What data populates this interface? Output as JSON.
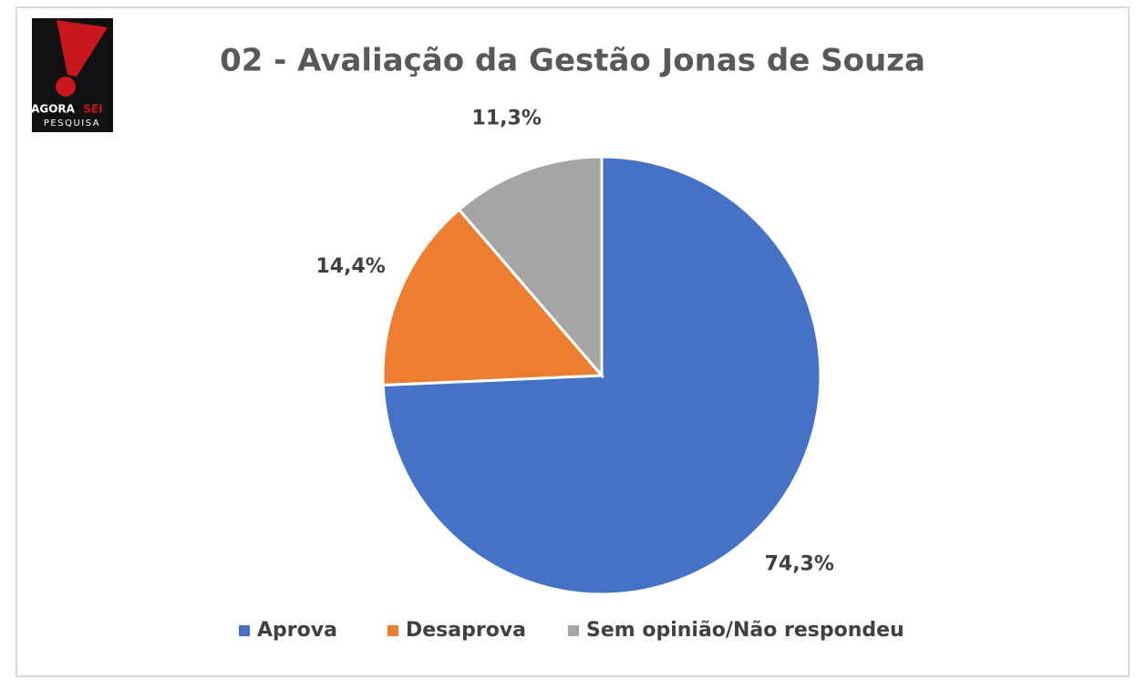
{
  "logo": {
    "word1": "AGORA",
    "word2": "SEI",
    "word3": "PESQUISA"
  },
  "chart_data": {
    "type": "pie",
    "title": "02 - Avaliação da Gestão Jonas de Souza",
    "categories": [
      "Aprova",
      "Desaprova",
      "Sem opinião/Não respondeu"
    ],
    "values": [
      74.3,
      14.4,
      11.3
    ],
    "value_labels": [
      "74,3%",
      "14,4%",
      "11,3%"
    ],
    "colors": [
      "#4472c4",
      "#ed7d31",
      "#a5a5a5"
    ],
    "legend": "bottom"
  }
}
